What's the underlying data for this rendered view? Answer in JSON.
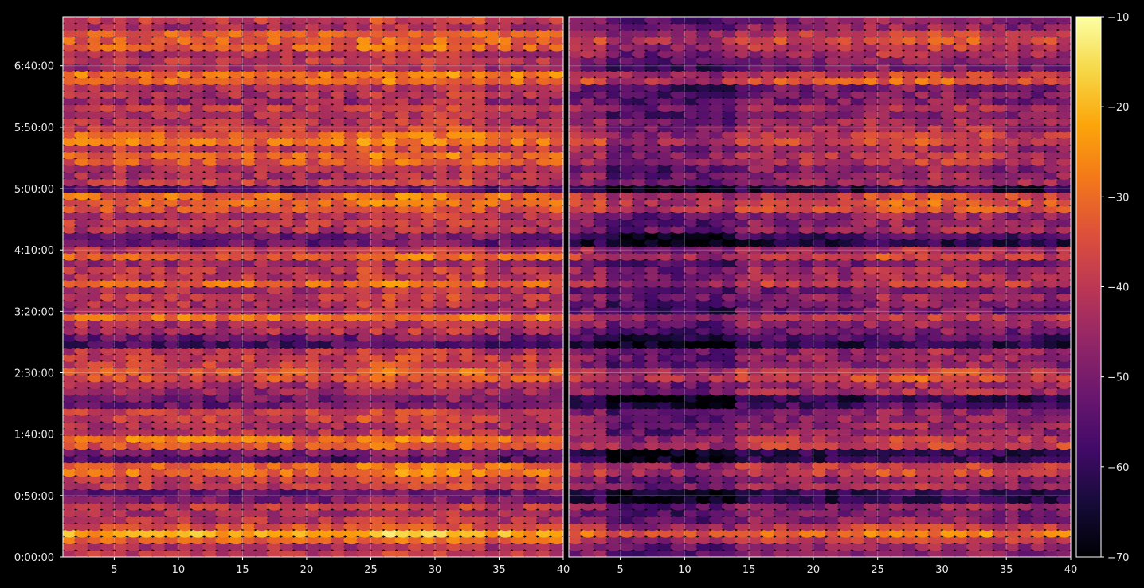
{
  "chart_data": {
    "type": "heatmap",
    "colormap": "inferno",
    "background": "#000000",
    "grid": true,
    "panels": [
      {
        "name": "left",
        "x_range": [
          1,
          40
        ],
        "x_ticks": [
          5,
          10,
          15,
          20,
          25,
          30,
          35,
          40
        ],
        "tick_labels": [
          "5",
          "10",
          "15",
          "20",
          "25",
          "30",
          "35",
          "40"
        ],
        "mean_level": -42
      },
      {
        "name": "right",
        "x_range": [
          1,
          40
        ],
        "x_ticks": [
          5,
          10,
          15,
          20,
          25,
          30,
          35,
          40
        ],
        "tick_labels": [
          "5",
          "10",
          "15",
          "20",
          "25",
          "30",
          "35",
          "40"
        ],
        "mean_level": -48
      }
    ],
    "y_axis": {
      "range_seconds": [
        0,
        26400
      ],
      "ticks_seconds": [
        0,
        3000,
        6000,
        9000,
        12000,
        15000,
        18000,
        21000,
        24000
      ],
      "tick_labels": [
        "0:00:00",
        "0:50:00",
        "1:40:00",
        "2:30:00",
        "3:20:00",
        "4:10:00",
        "5:00:00",
        "5:50:00",
        "6:40:00"
      ]
    },
    "colorbar": {
      "range": [
        -70,
        -10
      ],
      "ticks": [
        -10,
        -20,
        -30,
        -40,
        -50,
        -60,
        -70
      ],
      "tick_labels": [
        "−10",
        "−20",
        "−30",
        "−40",
        "−50",
        "−60",
        "−70"
      ]
    },
    "bright_rows_seconds": [
      25500,
      24900,
      23500,
      20500,
      19500,
      17500,
      17000,
      14700,
      13200,
      11800,
      9000,
      5600,
      4200,
      1400,
      900
    ],
    "dark_rows_seconds": [
      18000,
      15600,
      13000,
      12000,
      10500,
      7500,
      5000,
      3000
    ]
  }
}
